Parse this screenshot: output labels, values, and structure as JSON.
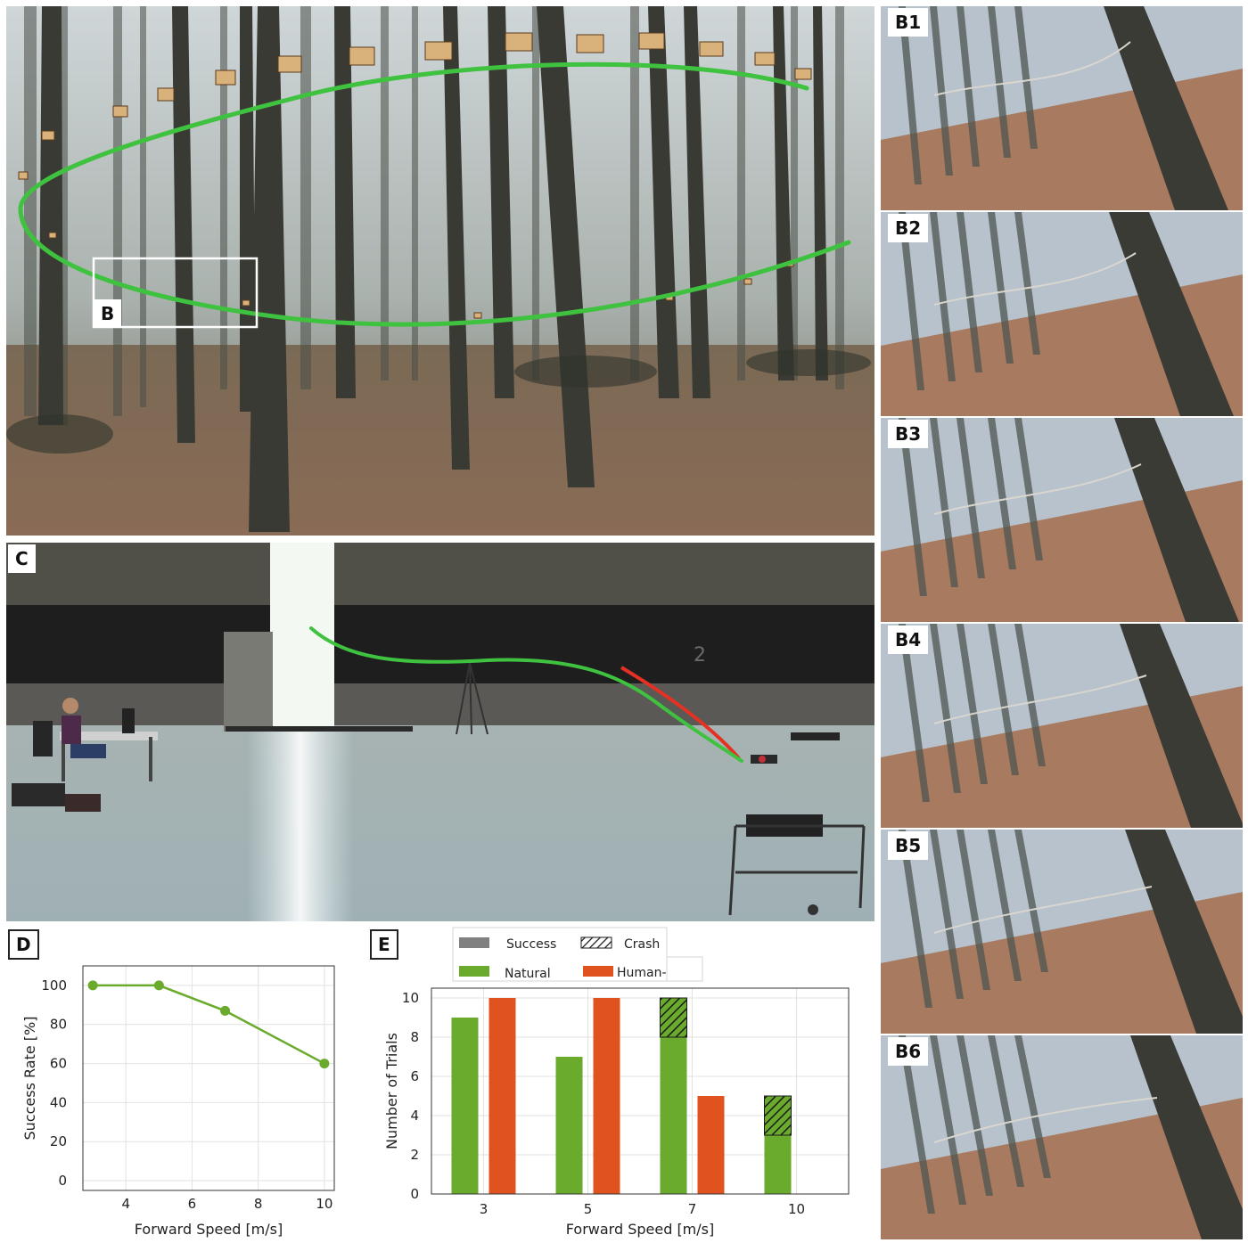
{
  "panels": {
    "a": {
      "inset_label": "B"
    },
    "b": [
      {
        "label": "B1"
      },
      {
        "label": "B2"
      },
      {
        "label": "B3"
      },
      {
        "label": "B4"
      },
      {
        "label": "B5"
      },
      {
        "label": "B6"
      }
    ],
    "c": {
      "label": "C",
      "wall_marking": "2"
    },
    "d": {
      "label": "D"
    },
    "e": {
      "label": "E"
    }
  },
  "colors": {
    "natural": "#6aaa2c",
    "human_made": "#e0531f",
    "success_legend": "#808080",
    "trajectory": "#3fc23f",
    "trajectory_red": "#e53124"
  },
  "chart_data": [
    {
      "type": "line",
      "panel": "D",
      "x": [
        3,
        5,
        7,
        10
      ],
      "y": [
        100,
        100,
        87,
        60
      ],
      "xlabel": "Forward Speed [m/s]",
      "ylabel": "Success Rate [%]",
      "xlim": [
        2.7,
        10.3
      ],
      "ylim": [
        -5,
        110
      ],
      "xticks": [
        4,
        6,
        8,
        10
      ],
      "yticks": [
        0,
        20,
        40,
        60,
        80,
        100
      ],
      "grid": true,
      "color": "#6aaa2c"
    },
    {
      "type": "bar",
      "panel": "E",
      "categories": [
        "3",
        "5",
        "7",
        "10"
      ],
      "series": [
        {
          "name": "Natural",
          "success": [
            9,
            7,
            8,
            3
          ],
          "crash": [
            0,
            0,
            2,
            2
          ]
        },
        {
          "name": "Human-Made",
          "success": [
            10,
            10,
            5,
            0
          ],
          "crash": [
            0,
            0,
            0,
            0
          ]
        }
      ],
      "legend": {
        "success": "Success",
        "crash": "Crash",
        "natural": "Natural",
        "human_made": "Human-Made"
      },
      "legend_position": "top",
      "xlabel": "Forward Speed [m/s]",
      "ylabel": "Number of Trials",
      "ylim": [
        0,
        10.5
      ],
      "yticks": [
        0,
        2,
        4,
        6,
        8,
        10
      ],
      "grid": true
    }
  ]
}
